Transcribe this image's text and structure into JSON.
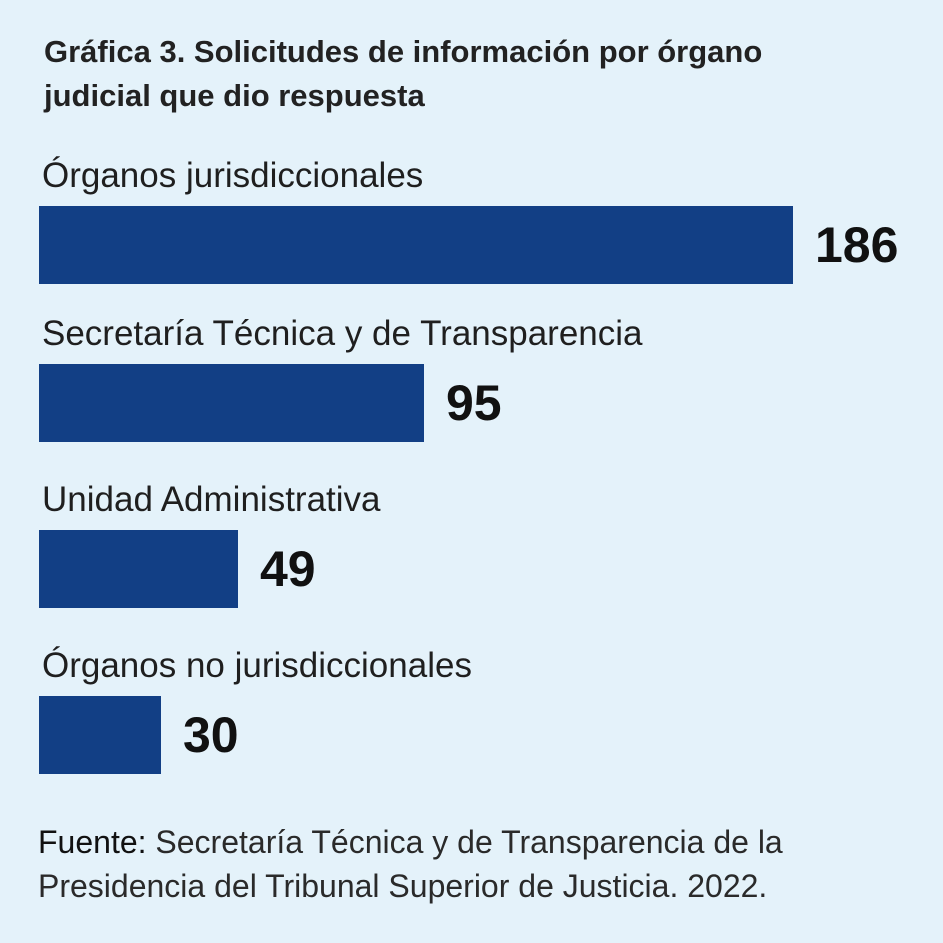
{
  "chart_data": {
    "type": "bar",
    "orientation": "horizontal",
    "title": "Gráfica 3. Solicitudes de información por órgano judicial que dio respuesta",
    "categories": [
      "Órganos jurisdiccionales",
      "Secretaría Técnica y de Transparencia",
      "Unidad Administrativa",
      "Órganos no jurisdiccionales"
    ],
    "values": [
      186,
      95,
      49,
      30
    ],
    "value_labels": [
      "186",
      "95",
      "49",
      "30"
    ],
    "bar_color": "#123f85",
    "background_color": "#e4f2fa",
    "grid": false,
    "legend": "none"
  },
  "source": {
    "prefix": "Fuente:",
    "text": "Secretaría Técnica y de Transparencia de la Presidencia del Tribunal Superior de Justicia. 2022."
  }
}
